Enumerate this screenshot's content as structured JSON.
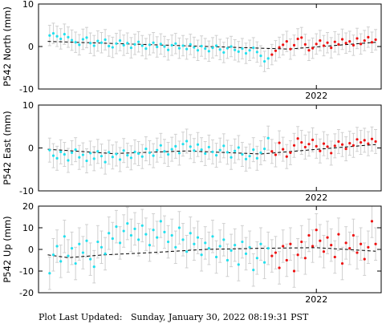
{
  "footer": {
    "label": "Plot Last Updated:",
    "timestamp": "Sunday, January 30, 2022 08:19:31 PST"
  },
  "colors": {
    "point": "#22e0ee",
    "point_recent": "#ee1111",
    "error_bar": "#d0d0d0",
    "trend": "#000000",
    "frame": "#000000"
  },
  "chart_data": [
    {
      "type": "scatter",
      "ylabel": "P542 North (mm)",
      "xticklabels": [
        {
          "x": 2022.0,
          "label": "2022"
        }
      ],
      "xlim": [
        2020.5,
        2022.35
      ],
      "ylim": [
        -10,
        10
      ],
      "yticks": [
        -10,
        0,
        10
      ],
      "error_mm": 2.4,
      "recent_from": 2021.75,
      "trend": {
        "x": [
          2020.55,
          2021.85,
          2022.32
        ],
        "y": [
          1.2,
          -0.6,
          1.0
        ]
      },
      "series": [
        {
          "x": [
            2020.56,
            2020.58,
            2020.6,
            2020.62,
            2020.64,
            2020.66,
            2020.68,
            2020.7,
            2020.72,
            2020.74,
            2020.76,
            2020.78,
            2020.8,
            2020.82,
            2020.84,
            2020.86,
            2020.88,
            2020.9,
            2020.92,
            2020.94,
            2020.96,
            2020.98,
            2021.0,
            2021.02,
            2021.04,
            2021.06,
            2021.08,
            2021.1,
            2021.12,
            2021.14,
            2021.16,
            2021.18,
            2021.2,
            2021.22,
            2021.24,
            2021.26,
            2021.28,
            2021.3,
            2021.32,
            2021.34,
            2021.36,
            2021.38,
            2021.4,
            2021.42,
            2021.44,
            2021.46,
            2021.48,
            2021.5,
            2021.52,
            2021.54,
            2021.56,
            2021.58,
            2021.6,
            2021.62,
            2021.64,
            2021.66,
            2021.68,
            2021.7,
            2021.72,
            2021.74,
            2021.76,
            2021.78,
            2021.8,
            2021.82,
            2021.84,
            2021.86,
            2021.88,
            2021.9,
            2021.92,
            2021.94,
            2021.96,
            2021.98,
            2022.0,
            2022.02,
            2022.04,
            2022.06,
            2022.08,
            2022.1,
            2022.12,
            2022.14,
            2022.16,
            2022.18,
            2022.2,
            2022.22,
            2022.24,
            2022.26,
            2022.28,
            2022.3,
            2022.32
          ],
          "y": [
            2.6,
            3.1,
            2.4,
            1.8,
            2.9,
            2.2,
            1.5,
            1.0,
            0.4,
            1.7,
            2.1,
            0.8,
            0.2,
            1.3,
            0.9,
            1.6,
            0.1,
            -0.2,
            0.7,
            1.4,
            0.3,
            0.8,
            -0.3,
            0.5,
            1.1,
            0.2,
            -0.5,
            0.4,
            0.9,
            -0.1,
            0.6,
            0.0,
            -0.8,
            0.3,
            0.7,
            -0.4,
            0.2,
            -0.6,
            0.5,
            -0.2,
            -0.9,
            0.1,
            -0.5,
            -1.1,
            -0.3,
            0.2,
            -0.7,
            -1.4,
            -0.4,
            0.0,
            -0.8,
            -1.2,
            -0.5,
            -1.6,
            -0.9,
            -0.3,
            -1.3,
            -2.2,
            -3.5,
            -2.8,
            -1.9,
            -1.0,
            -0.2,
            0.4,
            1.2,
            -0.6,
            0.3,
            1.8,
            2.1,
            0.5,
            -0.9,
            -0.4,
            0.6,
            1.4,
            0.2,
            0.9,
            -0.3,
            1.1,
            0.5,
            1.7,
            0.8,
            1.2,
            0.3,
            1.9,
            0.6,
            1.4,
            2.2,
            1.0,
            1.6
          ]
        }
      ]
    },
    {
      "type": "scatter",
      "ylabel": "P542 East (mm)",
      "xticklabels": [
        {
          "x": 2022.0,
          "label": "2022"
        }
      ],
      "xlim": [
        2020.5,
        2022.35
      ],
      "ylim": [
        -10,
        10
      ],
      "yticks": [
        -10,
        0,
        10
      ],
      "error_mm": 2.8,
      "recent_from": 2021.75,
      "trend": {
        "x": [
          2020.55,
          2020.9,
          2021.3,
          2021.7,
          2022.32
        ],
        "y": [
          -0.3,
          -1.3,
          -0.7,
          -1.4,
          0.8
        ]
      },
      "series": [
        {
          "x": [
            2020.56,
            2020.58,
            2020.6,
            2020.62,
            2020.64,
            2020.66,
            2020.68,
            2020.7,
            2020.72,
            2020.74,
            2020.76,
            2020.78,
            2020.8,
            2020.82,
            2020.84,
            2020.86,
            2020.88,
            2020.9,
            2020.92,
            2020.94,
            2020.96,
            2020.98,
            2021.0,
            2021.02,
            2021.04,
            2021.06,
            2021.08,
            2021.1,
            2021.12,
            2021.14,
            2021.16,
            2021.18,
            2021.2,
            2021.22,
            2021.24,
            2021.26,
            2021.28,
            2021.3,
            2021.32,
            2021.34,
            2021.36,
            2021.38,
            2021.4,
            2021.42,
            2021.44,
            2021.46,
            2021.48,
            2021.5,
            2021.52,
            2021.54,
            2021.56,
            2021.58,
            2021.6,
            2021.62,
            2021.64,
            2021.66,
            2021.68,
            2021.7,
            2021.72,
            2021.74,
            2021.76,
            2021.78,
            2021.8,
            2021.82,
            2021.84,
            2021.86,
            2021.88,
            2021.9,
            2021.92,
            2021.94,
            2021.96,
            2021.98,
            2022.0,
            2022.02,
            2022.04,
            2022.06,
            2022.08,
            2022.1,
            2022.12,
            2022.14,
            2022.16,
            2022.18,
            2022.2,
            2022.22,
            2022.24,
            2022.26,
            2022.28,
            2022.3,
            2022.32
          ],
          "y": [
            -0.5,
            -1.8,
            -2.4,
            -0.9,
            -1.5,
            -2.9,
            -1.1,
            -0.4,
            -2.2,
            -1.6,
            -3.0,
            -1.2,
            -2.5,
            -0.8,
            -1.9,
            -3.3,
            -1.0,
            -2.1,
            -1.4,
            -2.7,
            -0.6,
            -1.7,
            -2.3,
            -0.9,
            -1.3,
            -2.0,
            -0.2,
            -1.1,
            -1.8,
            -0.5,
            0.6,
            -0.8,
            -1.5,
            -0.3,
            0.4,
            -1.2,
            0.9,
            1.6,
            0.3,
            -0.6,
            0.8,
            -0.4,
            -1.3,
            0.2,
            -0.9,
            -1.7,
            -0.5,
            0.5,
            -1.0,
            -2.2,
            -0.7,
            0.1,
            -1.5,
            -2.6,
            -1.9,
            -0.4,
            -2.4,
            -1.1,
            -0.2,
            2.3,
            -0.8,
            -1.6,
            1.2,
            -0.3,
            -2.0,
            -1.1,
            0.6,
            2.2,
            1.3,
            0.2,
            0.9,
            1.9,
            0.4,
            -0.7,
            1.0,
            0.3,
            -1.2,
            0.5,
            1.5,
            0.8,
            -0.2,
            1.1,
            0.6,
            2.0,
            1.3,
            1.8,
            1.0,
            2.1,
            1.5
          ]
        }
      ]
    },
    {
      "type": "scatter",
      "ylabel": "P542 Up (mm)",
      "xticklabels": [
        {
          "x": 2022.0,
          "label": "2022"
        }
      ],
      "xlim": [
        2020.5,
        2022.35
      ],
      "ylim": [
        -20,
        20
      ],
      "yticks": [
        -20,
        -10,
        0,
        10,
        20
      ],
      "error_mm": 7.5,
      "recent_from": 2021.75,
      "trend": {
        "x": [
          2020.55,
          2020.66,
          2020.85,
          2021.1,
          2021.4,
          2021.7,
          2022.0,
          2022.32
        ],
        "y": [
          -2.5,
          -3.8,
          -2.5,
          -1.5,
          0.0,
          0.5,
          0.8,
          -0.8
        ]
      },
      "series": [
        {
          "x": [
            2020.56,
            2020.58,
            2020.6,
            2020.62,
            2020.64,
            2020.66,
            2020.68,
            2020.7,
            2020.72,
            2020.74,
            2020.76,
            2020.78,
            2020.8,
            2020.82,
            2020.84,
            2020.86,
            2020.88,
            2020.9,
            2020.92,
            2020.94,
            2020.96,
            2020.98,
            2021.0,
            2021.02,
            2021.04,
            2021.06,
            2021.08,
            2021.1,
            2021.12,
            2021.14,
            2021.16,
            2021.18,
            2021.2,
            2021.22,
            2021.24,
            2021.26,
            2021.28,
            2021.3,
            2021.32,
            2021.34,
            2021.36,
            2021.38,
            2021.4,
            2021.42,
            2021.44,
            2021.46,
            2021.48,
            2021.5,
            2021.52,
            2021.54,
            2021.56,
            2021.58,
            2021.6,
            2021.62,
            2021.64,
            2021.66,
            2021.68,
            2021.7,
            2021.72,
            2021.74,
            2021.76,
            2021.78,
            2021.8,
            2021.82,
            2021.84,
            2021.86,
            2021.88,
            2021.9,
            2021.92,
            2021.94,
            2021.96,
            2021.98,
            2022.0,
            2022.02,
            2022.04,
            2022.06,
            2022.08,
            2022.1,
            2022.12,
            2022.14,
            2022.16,
            2022.18,
            2022.2,
            2022.22,
            2022.24,
            2022.26,
            2022.28,
            2022.3,
            2022.32
          ],
          "y": [
            -11.0,
            -2.5,
            1.5,
            -5.5,
            6.0,
            -3.0,
            0.5,
            -6.5,
            2.5,
            -1.5,
            4.0,
            -4.5,
            -8.0,
            3.5,
            1.0,
            -2.0,
            7.5,
            5.0,
            10.5,
            3.0,
            8.5,
            12.0,
            6.5,
            9.5,
            4.5,
            11.0,
            7.0,
            2.0,
            9.0,
            5.5,
            13.0,
            8.0,
            3.5,
            6.5,
            1.0,
            10.0,
            4.5,
            -1.0,
            7.5,
            2.5,
            5.5,
            -2.5,
            3.0,
            0.5,
            6.0,
            -3.5,
            1.5,
            4.5,
            -5.0,
            -0.5,
            2.0,
            -7.0,
            3.5,
            -2.0,
            1.0,
            -9.5,
            -4.0,
            2.5,
            -6.0,
            0.5,
            -3.0,
            -1.5,
            -8.5,
            1.5,
            -5.0,
            2.5,
            -10.0,
            -2.5,
            3.5,
            -4.0,
            6.5,
            1.5,
            9.0,
            4.0,
            -1.0,
            5.5,
            2.0,
            -3.5,
            7.0,
            -6.5,
            3.0,
            0.5,
            6.5,
            -1.5,
            2.5,
            -4.5,
            1.0,
            13.0,
            2.5
          ]
        }
      ]
    }
  ]
}
